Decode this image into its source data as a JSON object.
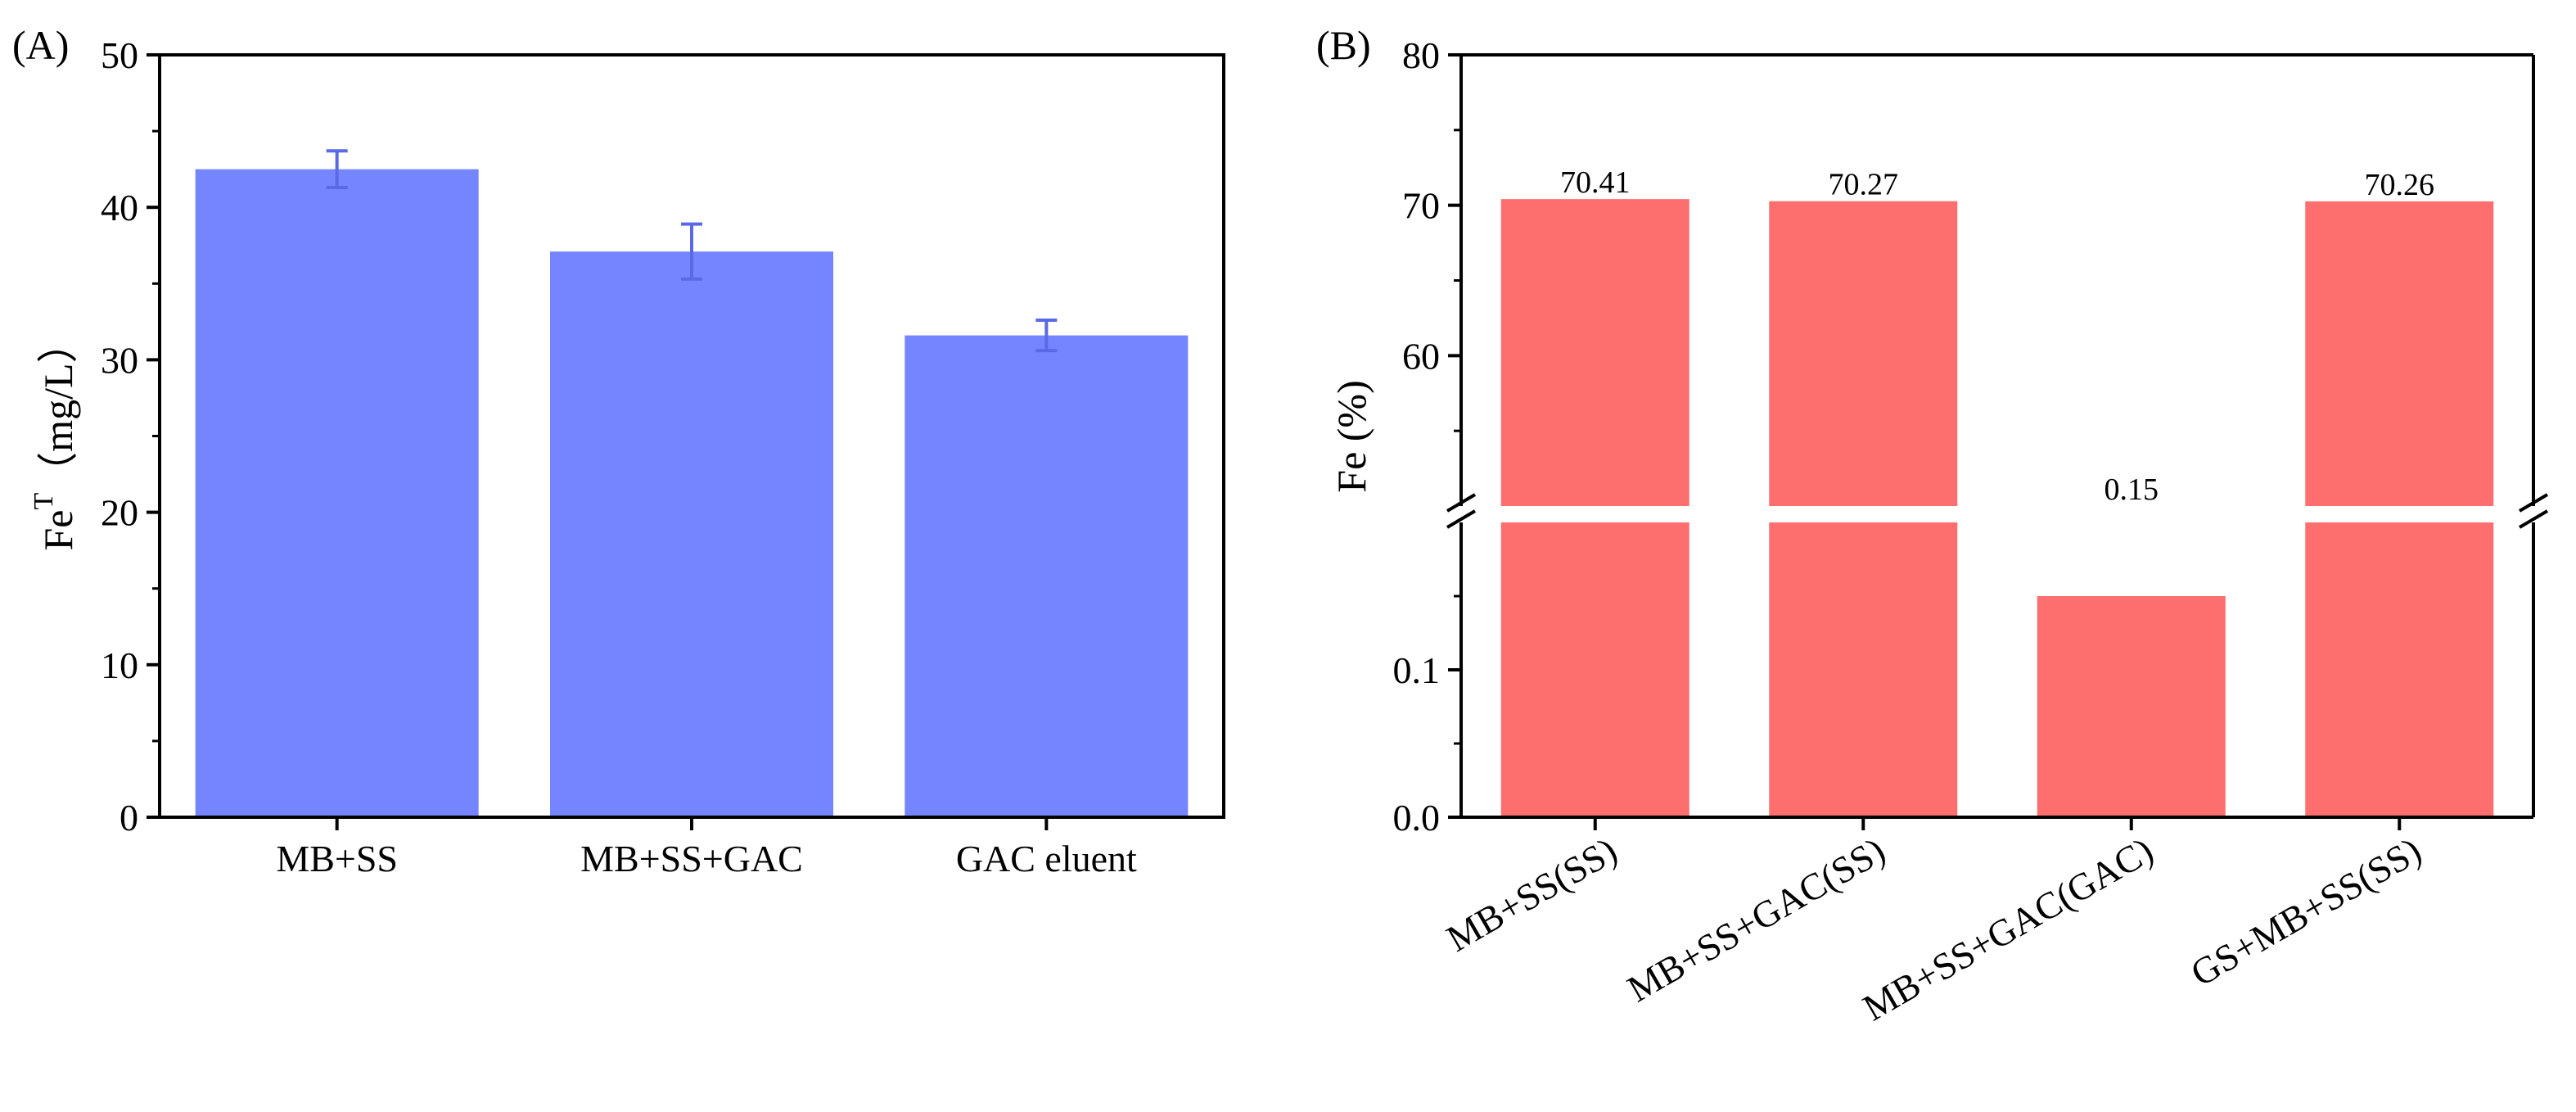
{
  "chart_data": [
    {
      "panel_label": "(A)",
      "type": "bar",
      "categories": [
        "MB+SS",
        "MB+SS+GAC",
        "GAC eluent"
      ],
      "values": [
        42.5,
        37.1,
        31.6
      ],
      "errors": [
        1.2,
        1.8,
        1.0
      ],
      "ylabel_main": "Fe",
      "ylabel_sup": "T",
      "ylabel_unit": "（mg/L）",
      "ylim": [
        0,
        50
      ],
      "yticks": [
        "0",
        "10",
        "20",
        "30",
        "40",
        "50"
      ],
      "color": "#7585ff",
      "error_color": "#5a6ae6"
    },
    {
      "panel_label": "(B)",
      "type": "bar",
      "categories": [
        "MB+SS(SS)",
        "MB+SS+GAC(SS)",
        "MB+SS+GAC(GAC)",
        "GS+MB+SS(SS)"
      ],
      "values": [
        70.41,
        70.27,
        0.15,
        70.26
      ],
      "data_labels": [
        "70.41",
        "70.27",
        "0.15",
        "70.26"
      ],
      "ylabel": "Fe (%)",
      "broken_axis": {
        "lower_range": [
          0,
          0.2
        ],
        "upper_range": [
          50,
          80
        ]
      },
      "yticks_lower": [
        "0.0",
        "0.1"
      ],
      "yticks_upper": [
        "60",
        "70",
        "80"
      ],
      "color": "#fd6e6e"
    }
  ]
}
